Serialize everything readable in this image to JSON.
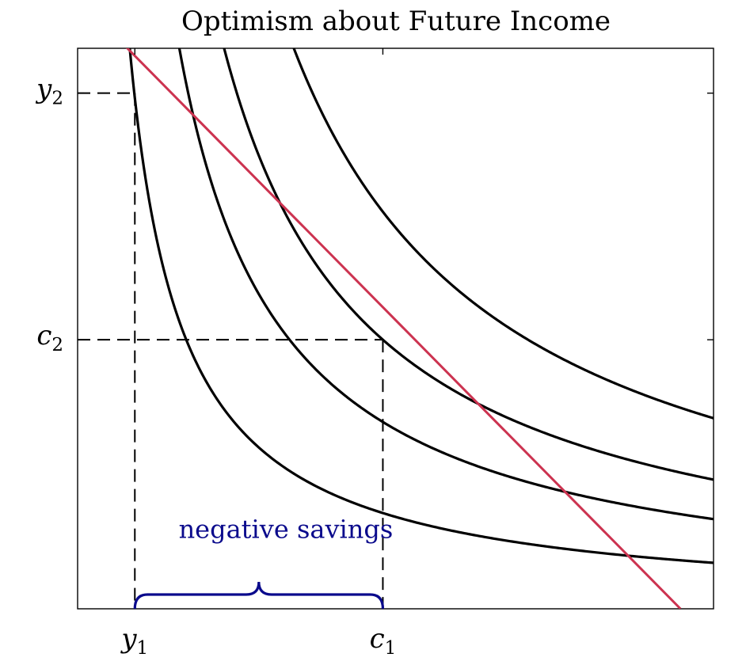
{
  "chart_data": {
    "type": "line",
    "title": "Optimism about Future Income",
    "xlabel": "",
    "ylabel": "",
    "xlim": [
      0,
      10
    ],
    "ylim": [
      0,
      10
    ],
    "grid": false,
    "x_ticks": [
      {
        "value": 0.9,
        "base": "y",
        "sub": "1"
      },
      {
        "value": 4.8,
        "base": "c",
        "sub": "1"
      }
    ],
    "y_ticks": [
      {
        "value": 9.2,
        "base": "y",
        "sub": "2"
      },
      {
        "value": 4.8,
        "base": "c",
        "sub": "2"
      }
    ],
    "indifference_curves": [
      {
        "k": 8.2,
        "color": "#000000"
      },
      {
        "k": 16.0,
        "color": "#000000"
      },
      {
        "k": 23.04,
        "color": "#000000"
      },
      {
        "k": 34.0,
        "color": "#000000"
      }
    ],
    "budget_line": {
      "color": "#cc3350",
      "points": [
        [
          0,
          10.9
        ],
        [
          9.48,
          0
        ]
      ]
    },
    "guides": [
      {
        "from": [
          0,
          9.2
        ],
        "to": [
          0.9,
          9.2
        ]
      },
      {
        "from": [
          0.9,
          9.2
        ],
        "to": [
          0.9,
          0
        ]
      },
      {
        "from": [
          0,
          4.8
        ],
        "to": [
          4.8,
          4.8
        ]
      },
      {
        "from": [
          4.8,
          4.8
        ],
        "to": [
          4.8,
          0
        ]
      }
    ],
    "brace": {
      "from": 0.9,
      "to": 4.8,
      "color": "#0a0a8c"
    },
    "annotation": {
      "text": "negative savings",
      "x": 3.1,
      "y": 1.35,
      "color": "#0a0a8c"
    }
  }
}
